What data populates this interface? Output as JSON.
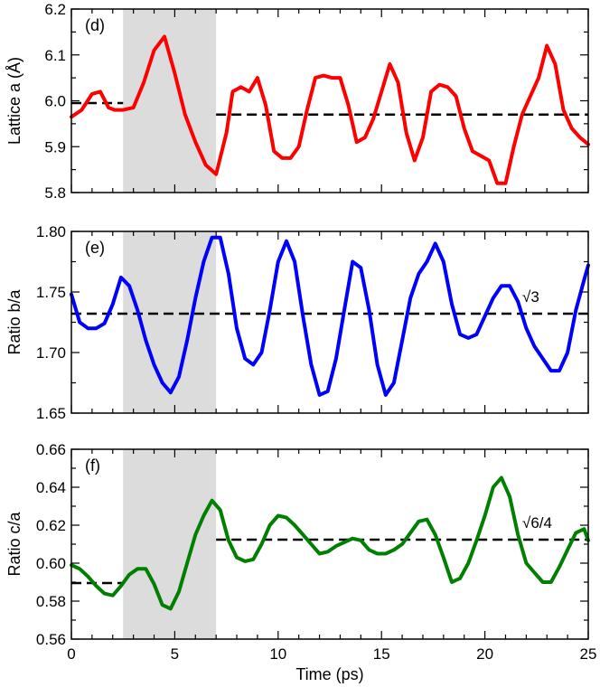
{
  "chart_data": [
    {
      "type": "line",
      "panel_label": "(d)",
      "ylabel": "Lattice a (Å)",
      "xlabel": "",
      "xlim": [
        0,
        25
      ],
      "ylim": [
        5.8,
        6.2
      ],
      "x_ticks": [
        0,
        5,
        10,
        15,
        20,
        25
      ],
      "y_ticks": [
        "5.8",
        "5.9",
        "6.0",
        "6.1",
        "6.2"
      ],
      "shaded_region": [
        2.5,
        7.0
      ],
      "shade_color": "#dcdcdc",
      "series": [
        {
          "color": "#ff0000",
          "x": [
            0,
            0.5,
            1.0,
            1.4,
            1.8,
            2.1,
            2.5,
            3.0,
            3.5,
            4.0,
            4.5,
            5.0,
            5.5,
            6.0,
            6.5,
            7.0,
            7.5,
            7.8,
            8.2,
            8.6,
            9.0,
            9.4,
            9.8,
            10.2,
            10.6,
            11.0,
            11.4,
            11.8,
            12.2,
            12.6,
            13.0,
            13.4,
            13.8,
            14.2,
            14.6,
            15.0,
            15.4,
            15.8,
            16.2,
            16.6,
            17.0,
            17.4,
            17.8,
            18.2,
            18.6,
            19.0,
            19.4,
            19.8,
            20.2,
            20.6,
            21.0,
            21.4,
            21.8,
            22.2,
            22.6,
            23.0,
            23.4,
            23.8,
            24.2,
            24.6,
            25.0
          ],
          "values": [
            5.965,
            5.98,
            6.015,
            6.02,
            5.985,
            5.98,
            5.98,
            5.985,
            6.04,
            6.11,
            6.14,
            6.06,
            5.97,
            5.91,
            5.86,
            5.84,
            5.93,
            6.02,
            6.03,
            6.02,
            6.05,
            5.99,
            5.89,
            5.875,
            5.875,
            5.9,
            5.98,
            6.05,
            6.055,
            6.05,
            6.05,
            5.99,
            5.91,
            5.92,
            5.96,
            6.02,
            6.08,
            6.04,
            5.93,
            5.87,
            5.92,
            6.02,
            6.035,
            6.03,
            6.01,
            5.94,
            5.89,
            5.88,
            5.87,
            5.82,
            5.82,
            5.9,
            5.97,
            6.01,
            6.05,
            6.12,
            6.08,
            5.98,
            5.94,
            5.92,
            5.905
          ]
        }
      ],
      "reference_lines": [
        {
          "x": [
            0,
            2.5
          ],
          "y": 5.995
        },
        {
          "x": [
            7.0,
            25
          ],
          "y": 5.97
        }
      ],
      "annotation": ""
    },
    {
      "type": "line",
      "panel_label": "(e)",
      "ylabel": "Ratio b/a",
      "xlabel": "",
      "xlim": [
        0,
        25
      ],
      "ylim": [
        1.65,
        1.8
      ],
      "x_ticks": [
        0,
        5,
        10,
        15,
        20,
        25
      ],
      "y_ticks": [
        "1.65",
        "1.70",
        "1.75",
        "1.80"
      ],
      "shaded_region": [
        2.5,
        7.0
      ],
      "shade_color": "#dcdcdc",
      "series": [
        {
          "color": "#0000ff",
          "x": [
            0,
            0.4,
            0.8,
            1.2,
            1.6,
            2.0,
            2.4,
            2.8,
            3.2,
            3.6,
            4.0,
            4.4,
            4.8,
            5.2,
            5.6,
            6.0,
            6.4,
            6.8,
            7.2,
            7.6,
            8.0,
            8.4,
            8.8,
            9.2,
            9.6,
            10.0,
            10.4,
            10.8,
            11.2,
            11.6,
            12.0,
            12.4,
            12.8,
            13.2,
            13.6,
            14.0,
            14.4,
            14.8,
            15.2,
            15.6,
            16.0,
            16.4,
            16.8,
            17.2,
            17.6,
            18.0,
            18.4,
            18.8,
            19.2,
            19.6,
            20.0,
            20.4,
            20.8,
            21.2,
            21.6,
            22.0,
            22.4,
            22.8,
            23.2,
            23.6,
            24.0,
            24.4,
            24.8,
            25.0
          ],
          "values": [
            1.748,
            1.725,
            1.72,
            1.72,
            1.724,
            1.74,
            1.762,
            1.755,
            1.735,
            1.71,
            1.69,
            1.675,
            1.667,
            1.68,
            1.71,
            1.745,
            1.775,
            1.795,
            1.795,
            1.765,
            1.72,
            1.695,
            1.69,
            1.7,
            1.735,
            1.775,
            1.792,
            1.775,
            1.73,
            1.69,
            1.665,
            1.668,
            1.695,
            1.735,
            1.775,
            1.77,
            1.735,
            1.69,
            1.665,
            1.675,
            1.71,
            1.745,
            1.765,
            1.775,
            1.79,
            1.775,
            1.74,
            1.715,
            1.712,
            1.715,
            1.73,
            1.745,
            1.755,
            1.755,
            1.742,
            1.72,
            1.705,
            1.695,
            1.685,
            1.685,
            1.7,
            1.735,
            1.76,
            1.772
          ]
        }
      ],
      "reference_lines": [
        {
          "x": [
            0,
            25
          ],
          "y": 1.7321
        }
      ],
      "annotation": "√3"
    },
    {
      "type": "line",
      "panel_label": "(f)",
      "ylabel": "Ratio c/a",
      "xlabel": "Time (ps)",
      "xlim": [
        0,
        25
      ],
      "ylim": [
        0.56,
        0.66
      ],
      "x_ticks": [
        0,
        5,
        10,
        15,
        20,
        25
      ],
      "y_ticks": [
        "0.56",
        "0.58",
        "0.60",
        "0.62",
        "0.64",
        "0.66"
      ],
      "shaded_region": [
        2.5,
        7.0
      ],
      "shade_color": "#dcdcdc",
      "series": [
        {
          "color": "#008000",
          "x": [
            0,
            0.4,
            0.8,
            1.2,
            1.6,
            2.0,
            2.4,
            2.8,
            3.2,
            3.6,
            4.0,
            4.4,
            4.8,
            5.2,
            5.6,
            6.0,
            6.4,
            6.8,
            7.2,
            7.6,
            8.0,
            8.4,
            8.8,
            9.2,
            9.6,
            10.0,
            10.4,
            10.8,
            11.2,
            11.6,
            12.0,
            12.4,
            12.8,
            13.2,
            13.6,
            14.0,
            14.4,
            14.8,
            15.2,
            15.6,
            16.0,
            16.4,
            16.8,
            17.2,
            17.6,
            18.0,
            18.4,
            18.8,
            19.2,
            19.6,
            20.0,
            20.4,
            20.8,
            21.2,
            21.6,
            22.0,
            22.4,
            22.8,
            23.2,
            23.6,
            24.0,
            24.4,
            24.8,
            25.0
          ],
          "values": [
            0.599,
            0.597,
            0.593,
            0.588,
            0.584,
            0.583,
            0.588,
            0.594,
            0.597,
            0.597,
            0.589,
            0.578,
            0.576,
            0.585,
            0.6,
            0.615,
            0.625,
            0.633,
            0.628,
            0.612,
            0.603,
            0.601,
            0.602,
            0.61,
            0.62,
            0.625,
            0.624,
            0.62,
            0.615,
            0.61,
            0.605,
            0.606,
            0.609,
            0.611,
            0.613,
            0.612,
            0.607,
            0.605,
            0.605,
            0.607,
            0.61,
            0.616,
            0.622,
            0.623,
            0.615,
            0.603,
            0.59,
            0.592,
            0.6,
            0.612,
            0.625,
            0.64,
            0.645,
            0.635,
            0.615,
            0.6,
            0.595,
            0.59,
            0.59,
            0.598,
            0.607,
            0.616,
            0.618,
            0.612
          ]
        }
      ],
      "reference_lines": [
        {
          "x": [
            0,
            2.5
          ],
          "y": 0.5895
        },
        {
          "x": [
            7.0,
            25
          ],
          "y": 0.6124
        }
      ],
      "annotation": "√6/4"
    }
  ]
}
